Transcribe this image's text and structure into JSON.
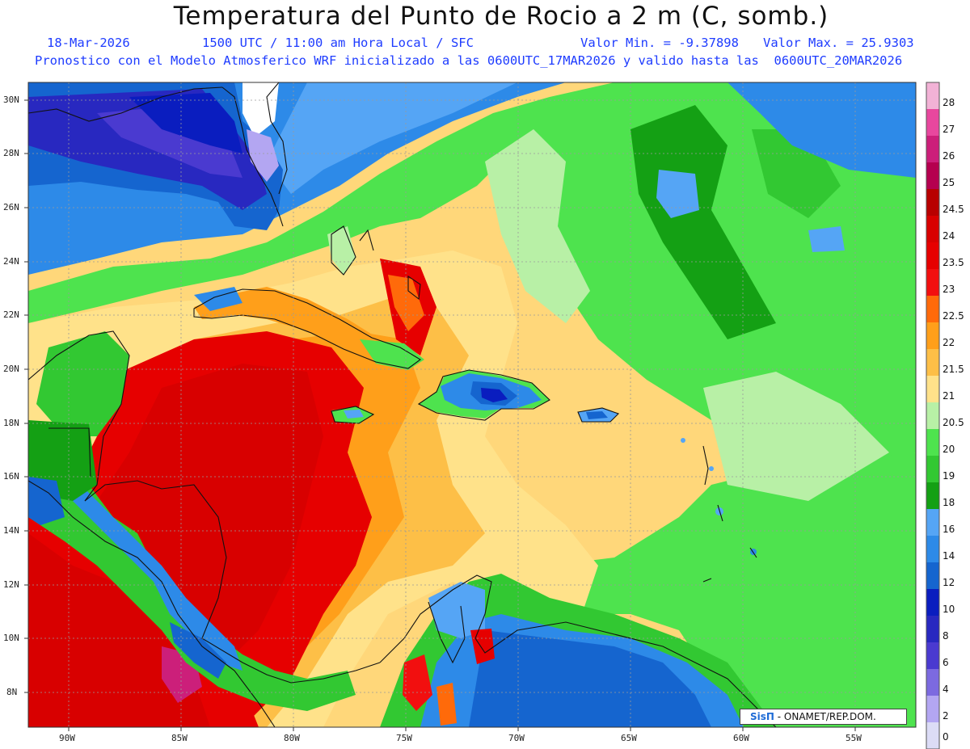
{
  "header": {
    "title": "Temperatura del Punto de Rocio a 2 m (C, somb.)",
    "date": "18-Mar-2026",
    "time_info": "1500 UTC / 11:00 am Hora Local / SFC",
    "min_value": "Valor Min. = -9.37898",
    "max_value": "Valor Max. = 25.9303",
    "model_info": "Pronostico con el Modelo Atmosferico WRF inicializado a las 0600UTC_17MAR2026 y valido hasta las  0600UTC_20MAR2026"
  },
  "map": {
    "lat_labels": [
      "30N",
      "28N",
      "26N",
      "24N",
      "22N",
      "20N",
      "18N",
      "16N",
      "14N",
      "12N",
      "10N",
      "8N"
    ],
    "lon_labels": [
      "90W",
      "85W",
      "80W",
      "75W",
      "70W",
      "65W",
      "60W",
      "55W"
    ],
    "gridlines": true
  },
  "colorbar": {
    "labels": [
      "28",
      "27",
      "26",
      "25",
      "24.5",
      "24",
      "23.5",
      "23",
      "22.5",
      "22",
      "21.5",
      "21",
      "20.5",
      "20",
      "19",
      "18",
      "16",
      "14",
      "12",
      "10",
      "8",
      "6",
      "4",
      "2",
      "0"
    ],
    "colors": [
      "#f2b2d6",
      "#e8479e",
      "#cc1f7a",
      "#b5004f",
      "#b80000",
      "#d80000",
      "#e60000",
      "#f20f0f",
      "#ff6a0a",
      "#ff9f1a",
      "#fdbf47",
      "#ffe28a",
      "#b8f0a6",
      "#4ee34e",
      "#32c832",
      "#14a014",
      "#55a5f5",
      "#2d8ae8",
      "#1565cf",
      "#0a1dbf",
      "#2828c0",
      "#4a3ad0",
      "#7c6ae0",
      "#b3a6f2",
      "#dcdcf6"
    ]
  },
  "credit": {
    "brand": "SisΠ",
    "text": "- ONAMET/REP.DOM."
  }
}
